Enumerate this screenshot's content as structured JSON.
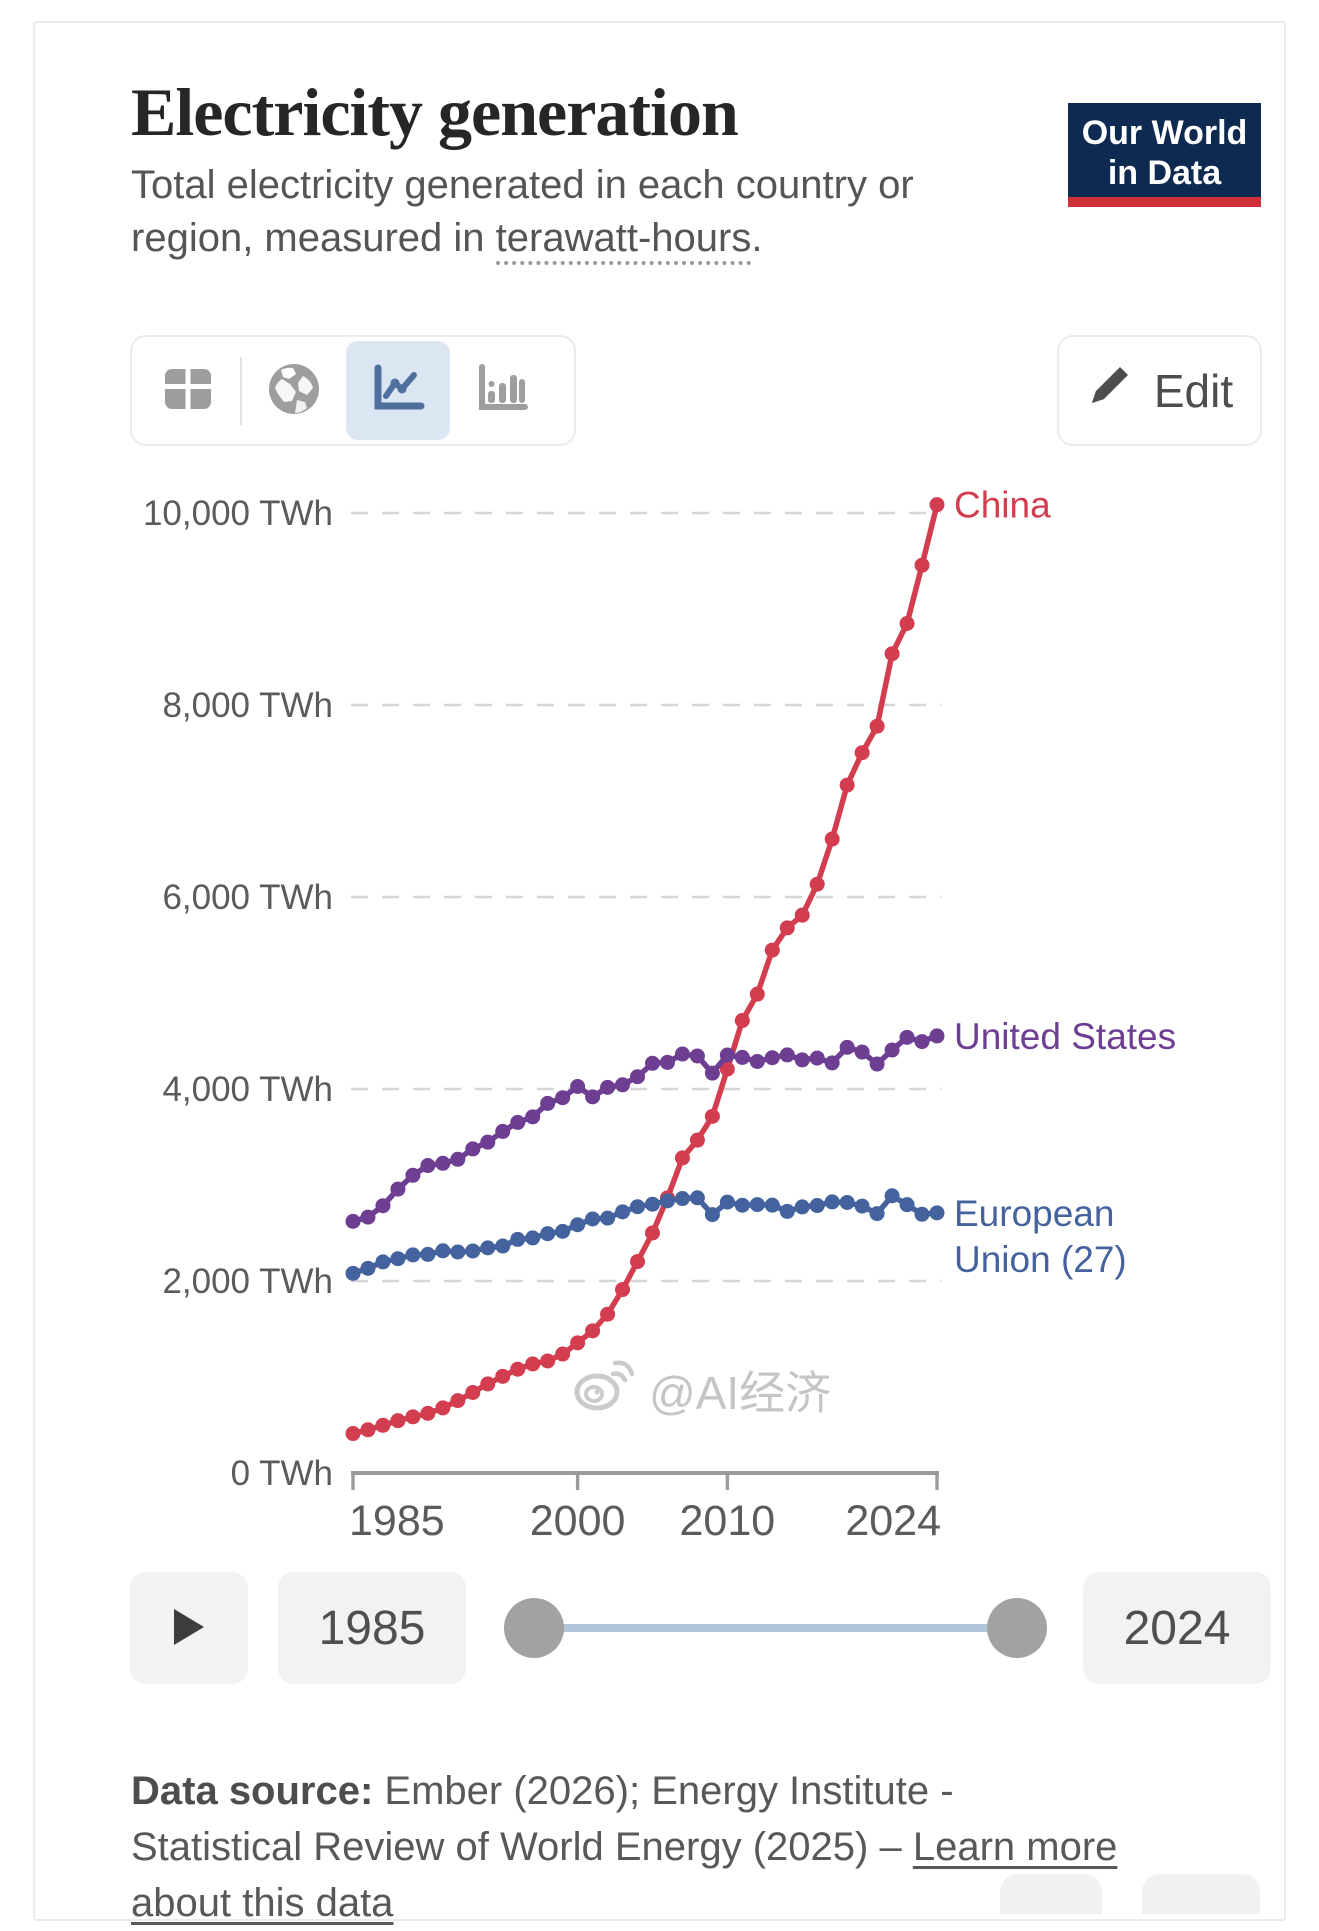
{
  "header": {
    "title": "Electricity generation",
    "subtitle_part1": "Total electricity generated in each country or region, measured in ",
    "subtitle_term": "terawatt-hours",
    "subtitle_period": ".",
    "logo_line1": "Our World",
    "logo_line2": "in Data",
    "logo_bg": "#0e2a50",
    "logo_bar": "#cf3038"
  },
  "toolbar": {
    "edit_label": "Edit",
    "tabs": [
      {
        "icon": "table-icon",
        "active": false
      },
      {
        "icon": "map-icon",
        "active": false
      },
      {
        "icon": "line-chart-icon",
        "active": true
      },
      {
        "icon": "bar-chart-icon",
        "active": false
      }
    ],
    "active_tab_bg": "#dbe6f2"
  },
  "chart_data": {
    "type": "line",
    "title": "Electricity generation",
    "unit": "TWh",
    "grid": true,
    "legend_position": "end-of-line",
    "ylim": [
      0,
      10000
    ],
    "yticks": [
      0,
      2000,
      4000,
      6000,
      8000,
      10000
    ],
    "ytick_labels": [
      "0 TWh",
      "2,000 TWh",
      "4,000 TWh",
      "6,000 TWh",
      "8,000 TWh",
      "10,000 TWh"
    ],
    "xticks": [
      1985,
      2000,
      2010,
      2024
    ],
    "xtick_labels": [
      "1985",
      "2000",
      "2010",
      "2024"
    ],
    "x": [
      1985,
      1986,
      1987,
      1988,
      1989,
      1990,
      1991,
      1992,
      1993,
      1994,
      1995,
      1996,
      1997,
      1998,
      1999,
      2000,
      2001,
      2002,
      2003,
      2004,
      2005,
      2006,
      2007,
      2008,
      2009,
      2010,
      2011,
      2012,
      2013,
      2014,
      2015,
      2016,
      2017,
      2018,
      2019,
      2020,
      2021,
      2022,
      2023,
      2024
    ],
    "series": [
      {
        "name": "China",
        "color": "#d23d4f",
        "label_lines": [
          "China"
        ],
        "values": [
          411,
          450,
          497,
          545,
          585,
          621,
          678,
          754,
          839,
          928,
          1007,
          1081,
          1136,
          1167,
          1239,
          1356,
          1481,
          1654,
          1911,
          2203,
          2500,
          2866,
          3282,
          3467,
          3715,
          4207,
          4713,
          4988,
          5447,
          5678,
          5811,
          6133,
          6604,
          7166,
          7503,
          7779,
          8534,
          8849,
          9456,
          10087
        ]
      },
      {
        "name": "United States",
        "color": "#6d3e91",
        "label_lines": [
          "United States"
        ],
        "values": [
          2621,
          2666,
          2784,
          2957,
          3101,
          3203,
          3226,
          3268,
          3376,
          3446,
          3558,
          3652,
          3710,
          3850,
          3909,
          4026,
          3918,
          4017,
          4044,
          4128,
          4268,
          4277,
          4364,
          4344,
          4165,
          4354,
          4329,
          4287,
          4326,
          4355,
          4303,
          4322,
          4272,
          4434,
          4385,
          4260,
          4406,
          4538,
          4494,
          4553
        ]
      },
      {
        "name": "European Union (27)",
        "color": "#44639e",
        "label_lines": [
          "European",
          "Union (27)"
        ],
        "values": [
          2080,
          2132,
          2199,
          2232,
          2272,
          2277,
          2315,
          2302,
          2313,
          2345,
          2364,
          2433,
          2449,
          2493,
          2517,
          2586,
          2646,
          2655,
          2720,
          2774,
          2800,
          2835,
          2859,
          2867,
          2692,
          2822,
          2789,
          2796,
          2790,
          2725,
          2772,
          2786,
          2824,
          2818,
          2780,
          2702,
          2888,
          2795,
          2695,
          2710
        ]
      }
    ],
    "colors": {
      "gridline": "#d6d6d6",
      "axis": "#9b9b9b",
      "tick_text": "#5b5b5b"
    }
  },
  "watermark": {
    "text": "@AI经济"
  },
  "timeline": {
    "start_year": "1985",
    "end_year": "2024"
  },
  "footer": {
    "label": "Data source:",
    "line1_rest": " Ember (2026); Energy Institute -",
    "line2_text": "Statistical Review of World Energy (2025) – ",
    "link_part1": "Learn more",
    "link_part2": "about this data"
  }
}
